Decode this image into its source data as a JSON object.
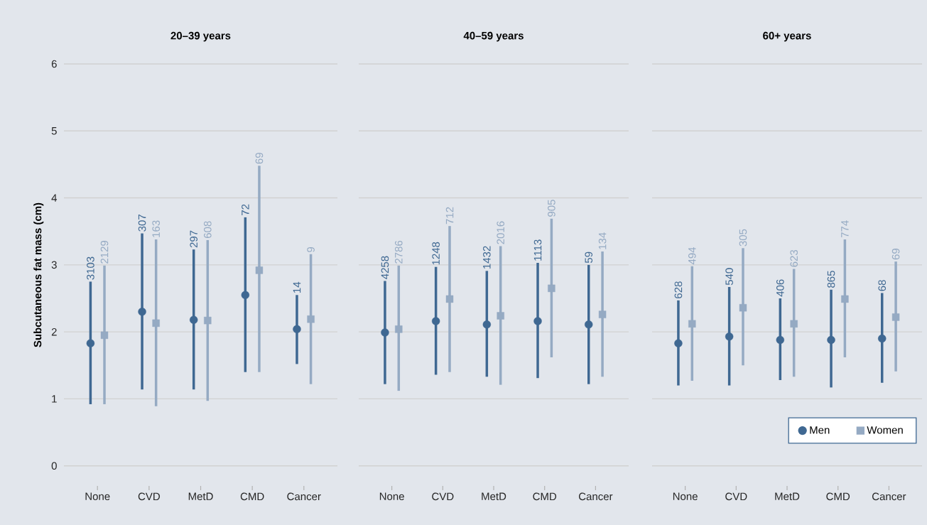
{
  "chart_data": [
    {
      "type": "scatter",
      "title": "20–39 years",
      "ylabel": "Subcutaneous fat mass (cm)",
      "categories": [
        "None",
        "CVD",
        "MetD",
        "CMD",
        "Cancer"
      ],
      "ylim": [
        0,
        6
      ],
      "yticks": [
        0,
        1,
        2,
        3,
        4,
        5,
        6
      ],
      "grid": "y",
      "legend": false,
      "series": [
        {
          "color": "#3f6892",
          "marker": "circle",
          "values": [
            1.83,
            2.3,
            2.18,
            2.55,
            2.04
          ],
          "errors": [
            [
              0.92,
              2.75
            ],
            [
              1.14,
              3.47
            ],
            [
              1.14,
              3.23
            ],
            [
              1.4,
              3.71
            ],
            [
              1.52,
              2.55
            ]
          ]
        },
        {
          "color": "#95aac3",
          "marker": "square",
          "values": [
            1.95,
            2.13,
            2.17,
            2.92,
            2.19
          ],
          "errors": [
            [
              0.92,
              2.99
            ],
            [
              0.89,
              3.38
            ],
            [
              0.97,
              3.37
            ],
            [
              1.4,
              4.48
            ],
            [
              1.22,
              3.16
            ]
          ]
        }
      ],
      "annotations": [
        "3103",
        "307",
        "297",
        "72",
        "14",
        "2129",
        "163",
        "608",
        "69",
        "9"
      ]
    },
    {
      "type": "scatter",
      "title": "40–59 years",
      "categories": [
        "None",
        "CVD",
        "MetD",
        "CMD",
        "Cancer"
      ],
      "ylim": [
        0,
        6
      ],
      "yticks": [
        0,
        1,
        2,
        3,
        4,
        5,
        6
      ],
      "grid": "y",
      "legend": false,
      "tick_labels": "x",
      "series": [
        {
          "color": "#3f6892",
          "marker": "circle",
          "values": [
            1.99,
            2.16,
            2.11,
            2.16,
            2.11
          ],
          "errors": [
            [
              1.22,
              2.76
            ],
            [
              1.36,
              2.97
            ],
            [
              1.33,
              2.91
            ],
            [
              1.31,
              3.03
            ],
            [
              1.22,
              3.0
            ]
          ]
        },
        {
          "color": "#95aac3",
          "marker": "square",
          "values": [
            2.04,
            2.49,
            2.24,
            2.65,
            2.26
          ],
          "errors": [
            [
              1.12,
              2.99
            ],
            [
              1.4,
              3.58
            ],
            [
              1.21,
              3.28
            ],
            [
              1.62,
              3.69
            ],
            [
              1.33,
              3.2
            ]
          ]
        }
      ],
      "annotations": [
        "4258",
        "1248",
        "1432",
        "1113",
        "59",
        "2786",
        "712",
        "2016",
        "905",
        "134"
      ]
    },
    {
      "type": "scatter",
      "title": "60+ years",
      "categories": [
        "None",
        "CVD",
        "MetD",
        "CMD",
        "Cancer"
      ],
      "ylim": [
        0,
        6
      ],
      "yticks": [
        0,
        1,
        2,
        3,
        4,
        5,
        6
      ],
      "grid": "y",
      "legend": "bottom right",
      "tick_labels": "x",
      "series": [
        {
          "name": "Men",
          "color": "#3f6892",
          "marker": "circle",
          "values": [
            1.83,
            1.93,
            1.88,
            1.88,
            1.9
          ],
          "errors": [
            [
              1.2,
              2.47
            ],
            [
              1.2,
              2.67
            ],
            [
              1.28,
              2.5
            ],
            [
              1.17,
              2.63
            ],
            [
              1.24,
              2.58
            ]
          ]
        },
        {
          "name": "Women",
          "color": "#95aac3",
          "marker": "square",
          "values": [
            2.12,
            2.36,
            2.12,
            2.49,
            2.22
          ],
          "errors": [
            [
              1.27,
              2.98
            ],
            [
              1.5,
              3.25
            ],
            [
              1.33,
              2.94
            ],
            [
              1.62,
              3.38
            ],
            [
              1.41,
              3.05
            ]
          ]
        }
      ],
      "annotations": [
        "628",
        "540",
        "406",
        "865",
        "68",
        "494",
        "305",
        "623",
        "774",
        "69"
      ]
    }
  ]
}
